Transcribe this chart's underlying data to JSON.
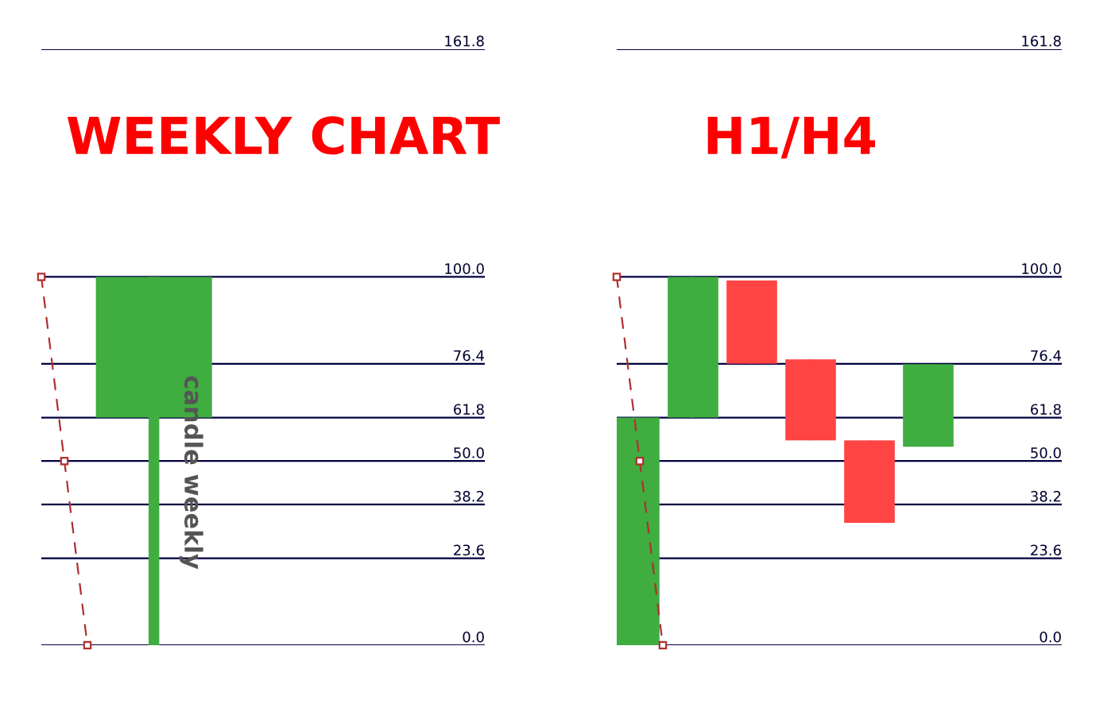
{
  "chart_data": [
    {
      "type": "candlestick",
      "title": "WEEKLY CHART",
      "categories": [
        null
      ],
      "ohlc": [
        [
          61.8,
          100,
          0,
          100
        ]
      ],
      "colors": [
        "#40ad40"
      ],
      "ylim": [
        0,
        161.8
      ],
      "yticks": [
        {
          "value": 0,
          "label": "0.0"
        },
        23.6,
        38.2,
        {
          "value": 50,
          "label": "50.0"
        },
        61.8,
        76.4,
        {
          "value": 100,
          "label": "100.0"
        },
        161.8
      ],
      "grid": "y",
      "annotations": [
        "candle weekly"
      ]
    },
    {
      "type": "candlestick",
      "title": "H1/H4",
      "categories": [
        null,
        null,
        null,
        null,
        null,
        null
      ],
      "ohlc": [
        [
          0,
          61.8,
          0,
          61.8
        ],
        [
          61.8,
          100,
          61.8,
          100
        ],
        [
          99,
          99,
          76.4,
          76.4
        ],
        [
          77.6,
          77.6,
          55.6,
          55.6
        ],
        [
          55.6,
          55.6,
          33.2,
          33.2
        ],
        [
          53.9,
          76.3,
          53.9,
          76.3
        ]
      ],
      "colors": [
        "#40ad40",
        "#40ad40",
        "#ff4444",
        "#ff4444",
        "#ff4444",
        "#40ad40"
      ],
      "ylim": [
        0,
        161.8
      ],
      "yticks": [
        {
          "value": 0,
          "label": "0.0"
        },
        23.6,
        38.2,
        {
          "value": 50,
          "label": "50.0"
        },
        61.8,
        76.4,
        {
          "value": 100,
          "label": "100.0"
        },
        161.8
      ],
      "grid": "y"
    }
  ]
}
